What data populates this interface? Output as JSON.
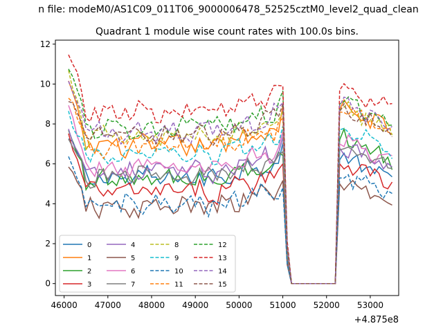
{
  "figure": {
    "suptitle": "n file: modeM0/AS1C09_011T06_9000006478_52525cztM0_level2_quad_clean",
    "title": "Quadrant 1 module wise count rates with 100.0s bins.",
    "x_offset_label": "+4.875e8"
  },
  "chart_data": {
    "type": "line",
    "title": "Quadrant 1 module wise count rates with 100.0s bins.",
    "xlabel": "",
    "ylabel": "",
    "x_offset": 487500000,
    "xlim": [
      45800,
      53650
    ],
    "ylim": [
      -0.6,
      12.2
    ],
    "xticks": [
      46000,
      47000,
      48000,
      49000,
      50000,
      51000,
      52000,
      53000
    ],
    "xtick_labels": [
      "46000",
      "47000",
      "48000",
      "49000",
      "50000",
      "51000",
      "52000",
      "53000"
    ],
    "yticks": [
      0,
      2,
      4,
      6,
      8,
      10,
      12
    ],
    "ytick_labels": [
      "0",
      "2",
      "4",
      "6",
      "8",
      "10",
      "12"
    ],
    "x_start": 46100,
    "x_step": 100,
    "n_points": 75,
    "gap": {
      "drop_start": 51050,
      "zero_from": 51200,
      "zero_to": 52200
    },
    "legend": {
      "placement": "lower-left",
      "columns": 4
    },
    "series": [
      {
        "name": "0",
        "color": "#1f77b4",
        "dash": "solid",
        "base": 5.3,
        "after": 5.8,
        "start": 7.2
      },
      {
        "name": "1",
        "color": "#ff7f0e",
        "dash": "solid",
        "base": 6.9,
        "after": 8.3,
        "start": 10.0
      },
      {
        "name": "2",
        "color": "#2ca02c",
        "dash": "solid",
        "base": 5.2,
        "after": 6.8,
        "start": 7.5
      },
      {
        "name": "3",
        "color": "#d62728",
        "dash": "solid",
        "base": 4.6,
        "after": 5.6,
        "start": 7.4
      },
      {
        "name": "4",
        "color": "#9467bd",
        "dash": "solid",
        "base": 5.6,
        "after": 6.4,
        "start": 7.7
      },
      {
        "name": "5",
        "color": "#8c564b",
        "dash": "solid",
        "base": 3.8,
        "after": 4.6,
        "start": 5.8
      },
      {
        "name": "6",
        "color": "#e377c2",
        "dash": "solid",
        "base": 5.8,
        "after": 6.6,
        "start": 8.8
      },
      {
        "name": "7",
        "color": "#7f7f7f",
        "dash": "solid",
        "base": 5.4,
        "after": 6.3,
        "start": 7.0
      },
      {
        "name": "8",
        "color": "#bcbd22",
        "dash": "dashed",
        "base": 7.3,
        "after": 8.3,
        "start": 10.4
      },
      {
        "name": "9",
        "color": "#17becf",
        "dash": "dashed",
        "base": 6.4,
        "after": 7.3,
        "start": 8.4
      },
      {
        "name": "10",
        "color": "#1f77b4",
        "dash": "dashed",
        "base": 3.9,
        "after": 4.9,
        "start": 6.2
      },
      {
        "name": "11",
        "color": "#ff7f0e",
        "dash": "dashed",
        "base": 6.9,
        "after": 8.2,
        "start": 9.6
      },
      {
        "name": "12",
        "color": "#2ca02c",
        "dash": "dashed",
        "base": 7.8,
        "after": 8.6,
        "start": 11.0
      },
      {
        "name": "13",
        "color": "#d62728",
        "dash": "dashed",
        "base": 8.6,
        "after": 9.3,
        "start": 11.6
      },
      {
        "name": "14",
        "color": "#9467bd",
        "dash": "dashed",
        "base": 7.6,
        "after": 8.5,
        "start": 10.2
      },
      {
        "name": "15",
        "color": "#8c564b",
        "dash": "dashed",
        "base": 7.4,
        "after": 8.2,
        "start": 9.2
      }
    ]
  }
}
